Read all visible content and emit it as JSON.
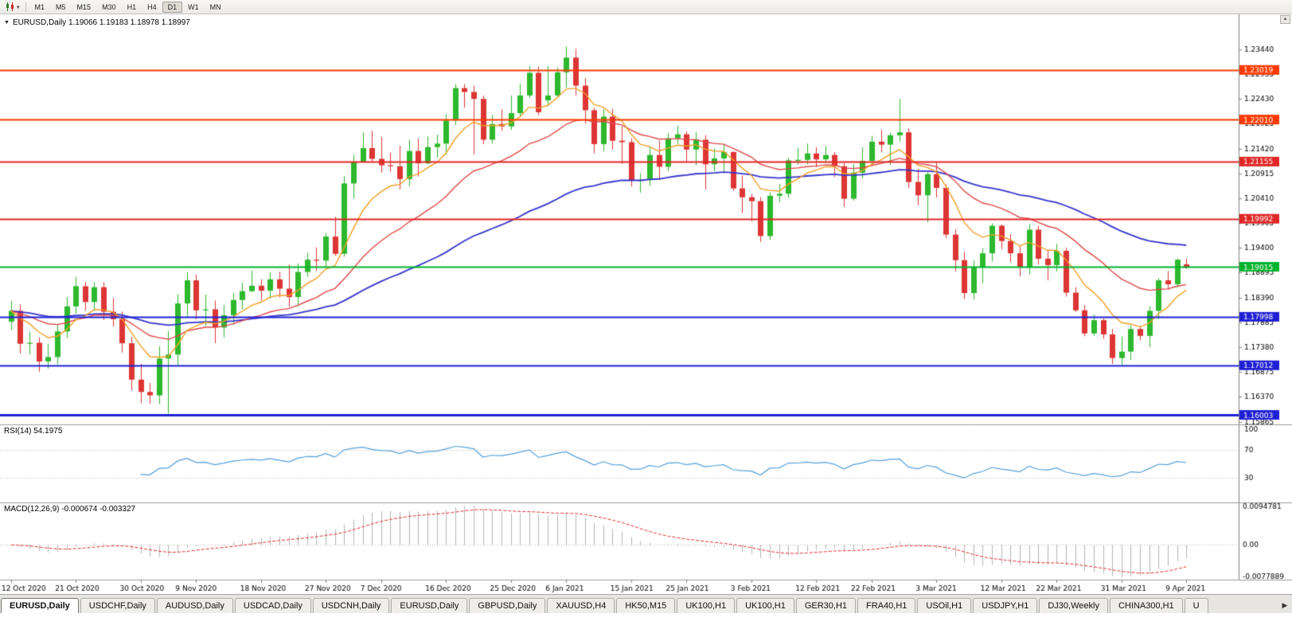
{
  "toolbar": {
    "timeframes": [
      "M1",
      "M5",
      "M15",
      "M30",
      "H1",
      "H4",
      "D1",
      "W1",
      "MN"
    ],
    "active_timeframe": "D1"
  },
  "icons": {
    "dropdown": "▾",
    "collapse": "▼",
    "scroll_up": "▲",
    "scroll_right": "▶"
  },
  "chart_header": {
    "symbol_ohlc": "EURUSD,Daily 1.19066 1.19183 1.18978 1.18997"
  },
  "price_axis": {
    "ticks": [
      "1.23440",
      "1.22935",
      "1.22430",
      "1.21925",
      "1.21420",
      "1.20915",
      "1.20410",
      "1.19905",
      "1.19400",
      "1.18895",
      "1.18390",
      "1.17885",
      "1.17380",
      "1.16875",
      "1.16370",
      "1.15865"
    ]
  },
  "hlines": [
    {
      "value": "1.23019",
      "color": "#ff3a00",
      "width": 2
    },
    {
      "value": "1.22010",
      "color": "#ff3a00",
      "width": 2
    },
    {
      "value": "1.21155",
      "color": "#e02626",
      "width": 2
    },
    {
      "value": "1.19992",
      "color": "#e02626",
      "width": 2
    },
    {
      "value": "1.19015",
      "color": "#00b32c",
      "width": 2
    },
    {
      "value": "1.17998",
      "color": "#1f1fd4",
      "width": 2
    },
    {
      "value": "1.17012",
      "color": "#1f1fd4",
      "width": 2
    },
    {
      "value": "1.16003",
      "color": "#1f1fd4",
      "width": 3
    }
  ],
  "rsi": {
    "label": "RSI(14) 54.1975",
    "period": 14,
    "levels": [
      "100",
      "70",
      "30"
    ],
    "line_color": "#55a0d8"
  },
  "macd": {
    "label": "MACD(12,26,9) -0.000674 -0.003327",
    "fast": 12,
    "slow": 26,
    "signal": 9,
    "scale_labels": [
      "0.0094781",
      "0.00",
      "-0.0077889"
    ],
    "hist_color": "#b4b4b4",
    "signal_color": "#e03030"
  },
  "date_axis": {
    "labels": [
      {
        "label": "12 Oct 2020",
        "i": 0
      },
      {
        "label": "21 Oct 2020",
        "i": 7
      },
      {
        "label": "30 Oct 2020",
        "i": 14
      },
      {
        "label": "9 Nov 2020",
        "i": 20
      },
      {
        "label": "18 Nov 2020",
        "i": 27
      },
      {
        "label": "27 Nov 2020",
        "i": 34
      },
      {
        "label": "7 Dec 2020",
        "i": 40
      },
      {
        "label": "16 Dec 2020",
        "i": 47
      },
      {
        "label": "25 Dec 2020",
        "i": 54
      },
      {
        "label": "6 Jan 2021",
        "i": 60
      },
      {
        "label": "15 Jan 2021",
        "i": 67
      },
      {
        "label": "25 Jan 2021",
        "i": 73
      },
      {
        "label": "3 Feb 2021",
        "i": 80
      },
      {
        "label": "12 Feb 2021",
        "i": 87
      },
      {
        "label": "22 Feb 2021",
        "i": 93
      },
      {
        "label": "3 Mar 2021",
        "i": 100
      },
      {
        "label": "12 Mar 2021",
        "i": 107
      },
      {
        "label": "22 Mar 2021",
        "i": 113
      },
      {
        "label": "31 Mar 2021",
        "i": 120
      },
      {
        "label": "9 Apr 2021",
        "i": 127
      }
    ]
  },
  "tabs": {
    "active_index": 0,
    "items": [
      "EURUSD,Daily",
      "USDCHF,Daily",
      "AUDUSD,Daily",
      "USDCAD,Daily",
      "USDCNH,Daily",
      "EURUSD,Daily",
      "GBPUSD,Daily",
      "XAUUSD,H4",
      "HK50,M15",
      "UK100,H1",
      "UK100,H1",
      "GER30,H1",
      "FRA40,H1",
      "USOil,H1",
      "USDJPY,H1",
      "DJ30,Weekly",
      "CHINA300,H1",
      "U"
    ]
  },
  "chart_data": {
    "type": "candlestick",
    "symbol": "EURUSD",
    "period": "Daily",
    "y_range": [
      1.1581,
      1.2415
    ],
    "colors": {
      "up": "#2db82d",
      "down": "#dd3535"
    },
    "moving_averages": [
      {
        "period": 55,
        "color": "#3535cc",
        "width": 1.8
      },
      {
        "period": 21,
        "color": "#e04848",
        "width": 1.4
      },
      {
        "period": 8,
        "color": "#f0a028",
        "width": 1.4
      }
    ],
    "candles": [
      [
        1.179,
        1.1832,
        1.1773,
        1.1812
      ],
      [
        1.1812,
        1.1825,
        1.1725,
        1.1745
      ],
      [
        1.1745,
        1.177,
        1.1723,
        1.1747
      ],
      [
        1.1747,
        1.1758,
        1.1688,
        1.1709
      ],
      [
        1.1709,
        1.1745,
        1.1694,
        1.1718
      ],
      [
        1.1718,
        1.1785,
        1.1703,
        1.177
      ],
      [
        1.177,
        1.184,
        1.1757,
        1.1821
      ],
      [
        1.1821,
        1.1881,
        1.1806,
        1.1862
      ],
      [
        1.1862,
        1.1871,
        1.1812,
        1.183
      ],
      [
        1.183,
        1.187,
        1.1813,
        1.186
      ],
      [
        1.186,
        1.187,
        1.1793,
        1.181
      ],
      [
        1.181,
        1.1838,
        1.178,
        1.1795
      ],
      [
        1.1795,
        1.181,
        1.1727,
        1.1746
      ],
      [
        1.1746,
        1.1759,
        1.165,
        1.1672
      ],
      [
        1.1672,
        1.1704,
        1.1624,
        1.1647
      ],
      [
        1.1647,
        1.1665,
        1.1623,
        1.164
      ],
      [
        1.164,
        1.174,
        1.1622,
        1.1715
      ],
      [
        1.1715,
        1.1771,
        1.1603,
        1.1723
      ],
      [
        1.1723,
        1.1846,
        1.1702,
        1.1827
      ],
      [
        1.1827,
        1.1891,
        1.18,
        1.1874
      ],
      [
        1.1874,
        1.1886,
        1.1795,
        1.1813
      ],
      [
        1.1813,
        1.1845,
        1.1781,
        1.1815
      ],
      [
        1.1815,
        1.1833,
        1.1746,
        1.1778
      ],
      [
        1.1778,
        1.1824,
        1.1758,
        1.1803
      ],
      [
        1.1803,
        1.1848,
        1.1783,
        1.1834
      ],
      [
        1.1834,
        1.1869,
        1.1815,
        1.1852
      ],
      [
        1.1852,
        1.1894,
        1.185,
        1.1863
      ],
      [
        1.1863,
        1.1876,
        1.1833,
        1.1853
      ],
      [
        1.1853,
        1.189,
        1.1837,
        1.1876
      ],
      [
        1.1876,
        1.1892,
        1.1839,
        1.1857
      ],
      [
        1.1857,
        1.1906,
        1.182,
        1.184
      ],
      [
        1.184,
        1.1908,
        1.1821,
        1.1891
      ],
      [
        1.1891,
        1.193,
        1.1881,
        1.1916
      ],
      [
        1.1916,
        1.1941,
        1.1893,
        1.1914
      ],
      [
        1.1914,
        1.197,
        1.1901,
        1.1963
      ],
      [
        1.1963,
        1.2003,
        1.1924,
        1.1928
      ],
      [
        1.1928,
        1.2086,
        1.1922,
        1.2071
      ],
      [
        1.2071,
        1.2129,
        1.204,
        1.2115
      ],
      [
        1.2115,
        1.2175,
        1.2115,
        1.2143
      ],
      [
        1.2143,
        1.2178,
        1.2115,
        1.2121
      ],
      [
        1.2121,
        1.2166,
        1.2093,
        1.2108
      ],
      [
        1.2108,
        1.2134,
        1.2095,
        1.2106
      ],
      [
        1.2106,
        1.2148,
        1.2059,
        1.208
      ],
      [
        1.208,
        1.216,
        1.2065,
        1.2137
      ],
      [
        1.2137,
        1.2163,
        1.2085,
        1.2112
      ],
      [
        1.2112,
        1.2167,
        1.211,
        1.2145
      ],
      [
        1.2145,
        1.217,
        1.2123,
        1.2152
      ],
      [
        1.2152,
        1.2212,
        1.213,
        1.2199
      ],
      [
        1.2199,
        1.2273,
        1.219,
        1.2265
      ],
      [
        1.2265,
        1.2273,
        1.2225,
        1.2257
      ],
      [
        1.2257,
        1.227,
        1.213,
        1.2243
      ],
      [
        1.2243,
        1.225,
        1.2151,
        1.216
      ],
      [
        1.216,
        1.221,
        1.2152,
        1.2192
      ],
      [
        1.2192,
        1.2222,
        1.2178,
        1.2187
      ],
      [
        1.2187,
        1.225,
        1.218,
        1.2214
      ],
      [
        1.2214,
        1.2274,
        1.2208,
        1.225
      ],
      [
        1.225,
        1.231,
        1.2245,
        1.2296
      ],
      [
        1.2296,
        1.2309,
        1.221,
        1.2216
      ],
      [
        1.224,
        1.231,
        1.2228,
        1.225
      ],
      [
        1.225,
        1.2307,
        1.2247,
        1.2297
      ],
      [
        1.2297,
        1.2349,
        1.2266,
        1.2327
      ],
      [
        1.2327,
        1.2345,
        1.225,
        1.227
      ],
      [
        1.227,
        1.2285,
        1.2193,
        1.222
      ],
      [
        1.222,
        1.2225,
        1.2132,
        1.2151
      ],
      [
        1.2151,
        1.2222,
        1.2136,
        1.2207
      ],
      [
        1.2207,
        1.2223,
        1.214,
        1.2158
      ],
      [
        1.2158,
        1.2187,
        1.2111,
        1.2155
      ],
      [
        1.2155,
        1.2163,
        1.2065,
        1.2077
      ],
      [
        1.2077,
        1.2092,
        1.2052,
        1.2078
      ],
      [
        1.2078,
        1.2145,
        1.2066,
        1.2129
      ],
      [
        1.2129,
        1.2158,
        1.2078,
        1.2105
      ],
      [
        1.2105,
        1.2173,
        1.2096,
        1.2163
      ],
      [
        1.2163,
        1.2189,
        1.2151,
        1.2171
      ],
      [
        1.2171,
        1.2177,
        1.2116,
        1.214
      ],
      [
        1.214,
        1.2175,
        1.2108,
        1.216
      ],
      [
        1.216,
        1.2169,
        1.2059,
        1.211
      ],
      [
        1.211,
        1.2142,
        1.2096,
        1.2122
      ],
      [
        1.2122,
        1.2152,
        1.2093,
        1.2135
      ],
      [
        1.2135,
        1.2136,
        1.2056,
        1.2061
      ],
      [
        1.2061,
        1.2087,
        1.2011,
        1.2043
      ],
      [
        1.2043,
        1.205,
        1.1994,
        1.2035
      ],
      [
        1.2035,
        1.2043,
        1.1952,
        1.1964
      ],
      [
        1.1964,
        1.2053,
        1.1956,
        1.2046
      ],
      [
        1.2046,
        1.207,
        1.2033,
        1.205
      ],
      [
        1.205,
        1.2123,
        1.2042,
        1.2118
      ],
      [
        1.2118,
        1.2144,
        1.2109,
        1.2119
      ],
      [
        1.2119,
        1.2152,
        1.211,
        1.2132
      ],
      [
        1.2132,
        1.2145,
        1.2104,
        1.212
      ],
      [
        1.212,
        1.2147,
        1.2113,
        1.2129
      ],
      [
        1.2129,
        1.2135,
        1.2084,
        1.2106
      ],
      [
        1.2106,
        1.2113,
        1.2023,
        1.204
      ],
      [
        1.204,
        1.211,
        1.2036,
        1.2093
      ],
      [
        1.2093,
        1.2145,
        1.2081,
        1.2117
      ],
      [
        1.2117,
        1.2168,
        1.2107,
        1.2156
      ],
      [
        1.2156,
        1.218,
        1.2134,
        1.215
      ],
      [
        1.215,
        1.2174,
        1.2109,
        1.2169
      ],
      [
        1.2169,
        1.2243,
        1.2156,
        1.2175
      ],
      [
        1.2175,
        1.2183,
        1.2062,
        1.2074
      ],
      [
        1.2074,
        1.2101,
        1.2027,
        1.2047
      ],
      [
        1.2047,
        1.2094,
        1.1992,
        1.209
      ],
      [
        1.209,
        1.2113,
        1.2043,
        1.2062
      ],
      [
        1.2062,
        1.2069,
        1.196,
        1.1967
      ],
      [
        1.1967,
        1.1978,
        1.1892,
        1.1915
      ],
      [
        1.1915,
        1.1932,
        1.1836,
        1.1848
      ],
      [
        1.1848,
        1.1915,
        1.1835,
        1.19
      ],
      [
        1.19,
        1.1939,
        1.1868,
        1.1929
      ],
      [
        1.1929,
        1.199,
        1.1912,
        1.1985
      ],
      [
        1.1985,
        1.1988,
        1.1937,
        1.1954
      ],
      [
        1.1954,
        1.1968,
        1.1911,
        1.1929
      ],
      [
        1.1929,
        1.1943,
        1.1882,
        1.19
      ],
      [
        1.19,
        1.1989,
        1.1886,
        1.1977
      ],
      [
        1.1977,
        1.1985,
        1.1906,
        1.1918
      ],
      [
        1.1918,
        1.1936,
        1.1874,
        1.1905
      ],
      [
        1.1905,
        1.1948,
        1.1892,
        1.1934
      ],
      [
        1.1934,
        1.194,
        1.1841,
        1.1849
      ],
      [
        1.1849,
        1.186,
        1.181,
        1.1813
      ],
      [
        1.1813,
        1.1824,
        1.176,
        1.1766
      ],
      [
        1.1766,
        1.1805,
        1.1761,
        1.1793
      ],
      [
        1.1793,
        1.1797,
        1.1755,
        1.1764
      ],
      [
        1.1764,
        1.1775,
        1.1704,
        1.1716
      ],
      [
        1.1716,
        1.176,
        1.1702,
        1.1729
      ],
      [
        1.1729,
        1.1782,
        1.1712,
        1.1775
      ],
      [
        1.1775,
        1.1781,
        1.1752,
        1.1761
      ],
      [
        1.1761,
        1.1821,
        1.1738,
        1.1812
      ],
      [
        1.1812,
        1.1878,
        1.1795,
        1.1874
      ],
      [
        1.1874,
        1.1893,
        1.1855,
        1.1866
      ],
      [
        1.1866,
        1.1918,
        1.186,
        1.1916
      ],
      [
        1.19066,
        1.19183,
        1.18978,
        1.18997
      ]
    ]
  }
}
